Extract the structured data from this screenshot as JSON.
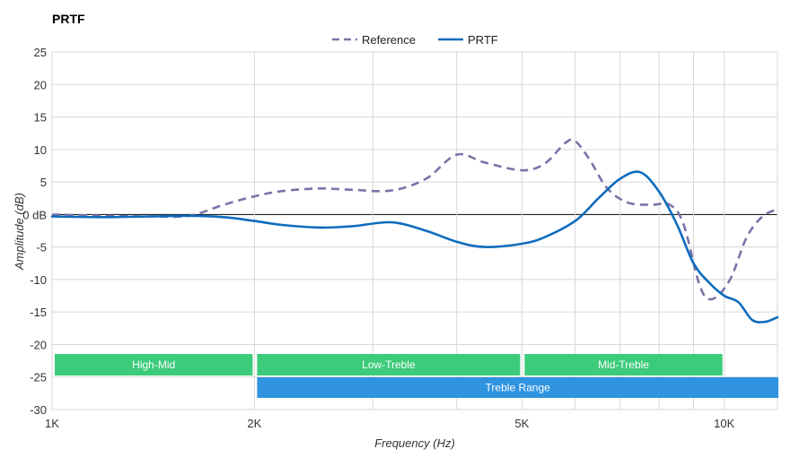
{
  "chart_data": {
    "type": "line",
    "title": "PRTF",
    "xlabel": "Frequency (Hz)",
    "ylabel": "Amplitude (dB)",
    "xscale": "log",
    "xlim": [
      1000,
      12000
    ],
    "ylim": [
      -30,
      25
    ],
    "yticks": [
      25,
      20,
      15,
      10,
      5,
      0,
      -5,
      -10,
      -15,
      -20,
      -25,
      -30
    ],
    "ytick_labels": [
      "25",
      "20",
      "15",
      "10",
      "5",
      "0 dB",
      "-5",
      "-10",
      "-15",
      "-20",
      "-25",
      "-30"
    ],
    "xticks": [
      1000,
      2000,
      5000,
      10000
    ],
    "xtick_labels": [
      "1K",
      "2K",
      "5K",
      "10K"
    ],
    "grid": true,
    "legend_position": "top-center",
    "series": [
      {
        "name": "Reference",
        "color": "#7a74a8",
        "style": "dashed",
        "x": [
          1000,
          1200,
          1400,
          1600,
          1800,
          2000,
          2200,
          2500,
          2800,
          3200,
          3600,
          4000,
          4400,
          5000,
          5400,
          5800,
          6000,
          6300,
          6700,
          7200,
          7800,
          8300,
          8700,
          9200,
          9600,
          10200,
          10800,
          11400,
          12000
        ],
        "y": [
          0,
          -0.2,
          -0.3,
          -0.2,
          1.5,
          2.8,
          3.6,
          4.0,
          3.8,
          3.7,
          5.5,
          9.2,
          8.0,
          6.8,
          7.8,
          11.0,
          11.3,
          8.5,
          4.0,
          1.8,
          1.5,
          1.5,
          -1.5,
          -11,
          -13,
          -10,
          -3.5,
          -0.3,
          0.8
        ]
      },
      {
        "name": "PRTF",
        "color": "#0f6cbd",
        "style": "solid",
        "x": [
          1000,
          1200,
          1400,
          1600,
          1800,
          2000,
          2200,
          2500,
          2800,
          3200,
          3600,
          4000,
          4400,
          5000,
          5400,
          6000,
          6500,
          7000,
          7500,
          8000,
          8500,
          9000,
          9500,
          10000,
          10500,
          11000,
          11500,
          12000
        ],
        "y": [
          -0.3,
          -0.4,
          -0.3,
          -0.2,
          -0.4,
          -1.0,
          -1.6,
          -2.0,
          -1.8,
          -1.2,
          -2.5,
          -4.2,
          -5.0,
          -4.5,
          -3.5,
          -1.0,
          2.5,
          5.5,
          6.5,
          3.5,
          -1.5,
          -7.5,
          -10.5,
          -12.5,
          -13.5,
          -16.2,
          -16.5,
          -15.8
        ]
      }
    ],
    "bands": [
      {
        "label": "High-Mid",
        "x_start": 1000,
        "x_end": 2000,
        "row": 1,
        "color": "#3ccb7a"
      },
      {
        "label": "Low-Treble",
        "x_start": 2000,
        "x_end": 5000,
        "row": 1,
        "color": "#3ccb7a"
      },
      {
        "label": "Mid-Treble",
        "x_start": 5000,
        "x_end": 10000,
        "row": 1,
        "color": "#3ccb7a"
      },
      {
        "label": "Treble Range",
        "x_start": 2000,
        "x_end": 12000,
        "row": 2,
        "color": "#2f93e0"
      }
    ]
  }
}
